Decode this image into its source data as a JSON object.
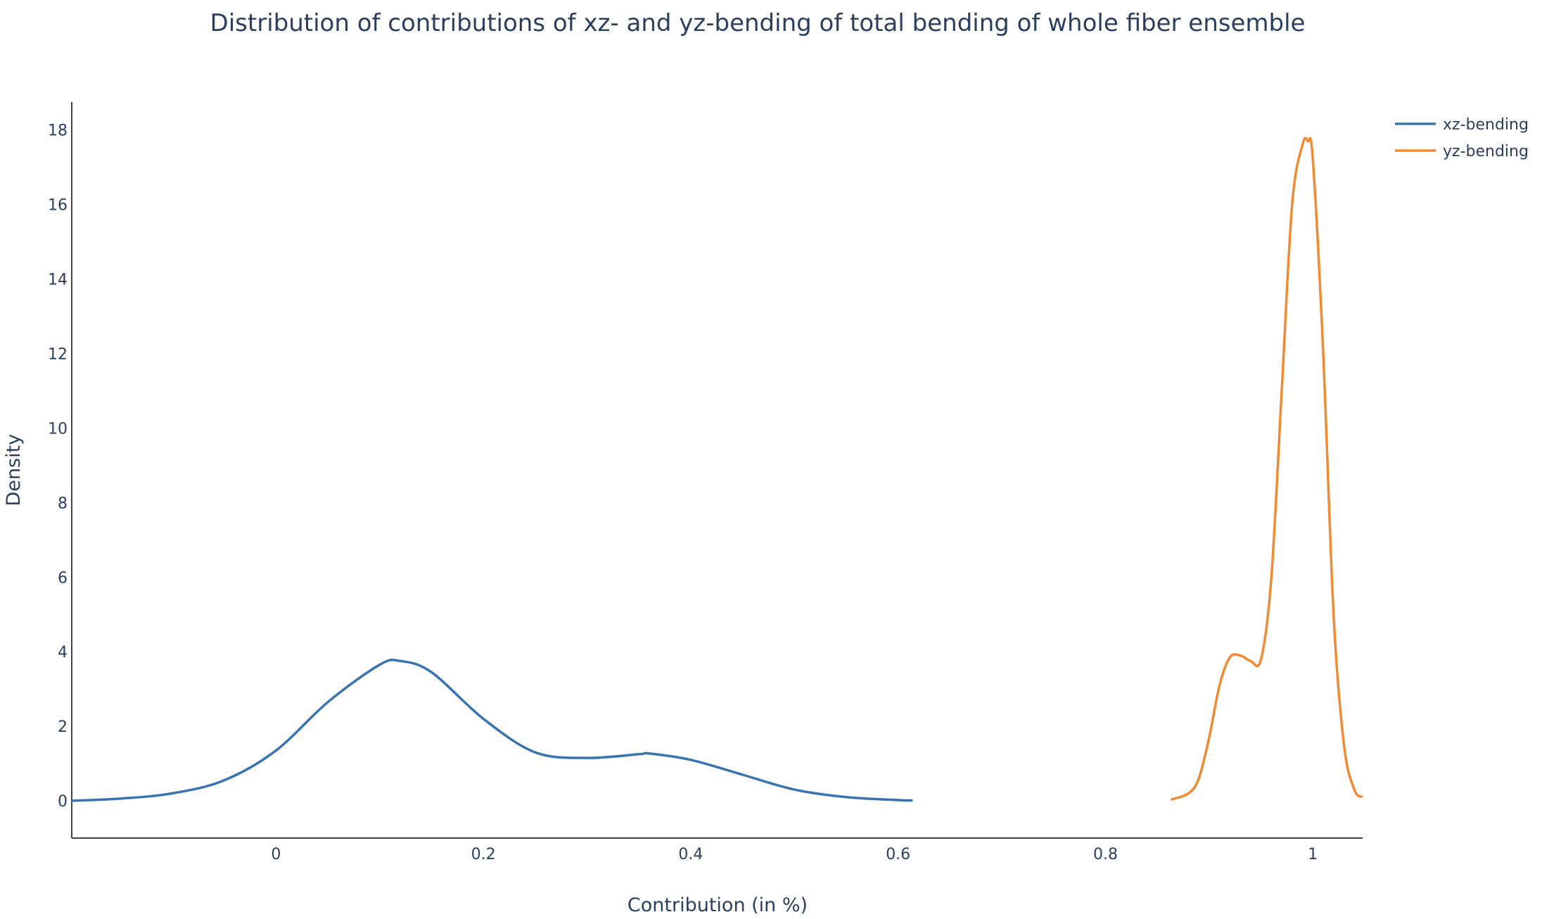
{
  "chart_data": {
    "type": "line",
    "title": "Distribution of contributions of xz- and yz-bending of total bending of whole fiber ensemble",
    "xlabel": "Contribution (in %)",
    "ylabel": "Density",
    "xlim": [
      -0.197,
      1.048
    ],
    "ylim": [
      -1.0,
      18.75
    ],
    "x_ticks": [
      0,
      0.2,
      0.4,
      0.6,
      0.8,
      1
    ],
    "x_tick_labels": [
      "0",
      "0.2",
      "0.4",
      "0.6",
      "0.8",
      "1"
    ],
    "y_ticks": [
      0,
      2,
      4,
      6,
      8,
      10,
      12,
      14,
      16,
      18
    ],
    "y_tick_labels": [
      "0",
      "2",
      "4",
      "6",
      "8",
      "10",
      "12",
      "14",
      "16",
      "18"
    ],
    "grid": false,
    "legend_position": "top-right",
    "series": [
      {
        "name": "xz-bending",
        "color": "#3a74b0",
        "x": [
          -0.197,
          -0.15,
          -0.1,
          -0.05,
          0.0,
          0.05,
          0.1,
          0.12,
          0.15,
          0.2,
          0.25,
          0.3,
          0.35,
          0.36,
          0.4,
          0.45,
          0.5,
          0.55,
          0.6,
          0.614
        ],
        "y": [
          0.0,
          0.06,
          0.2,
          0.55,
          1.35,
          2.65,
          3.65,
          3.75,
          3.45,
          2.2,
          1.3,
          1.15,
          1.25,
          1.27,
          1.1,
          0.7,
          0.3,
          0.1,
          0.02,
          0.01
        ]
      },
      {
        "name": "yz-bending",
        "color": "#f08a33",
        "x": [
          0.863,
          0.88,
          0.89,
          0.9,
          0.91,
          0.92,
          0.93,
          0.94,
          0.95,
          0.96,
          0.97,
          0.98,
          0.99,
          0.995,
          1.0,
          1.01,
          1.02,
          1.03,
          1.04,
          1.048
        ],
        "y": [
          0.03,
          0.2,
          0.6,
          1.7,
          3.1,
          3.85,
          3.9,
          3.75,
          3.8,
          6.0,
          11.0,
          16.0,
          17.6,
          17.7,
          17.2,
          12.0,
          5.0,
          1.5,
          0.3,
          0.1
        ]
      }
    ]
  }
}
